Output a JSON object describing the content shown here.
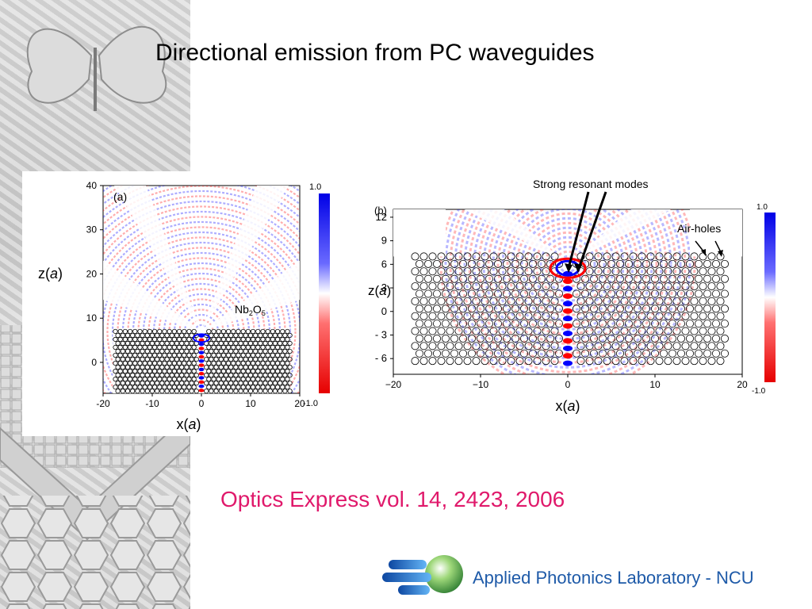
{
  "slide": {
    "title": "Directional emission from PC waveguides",
    "citation": "Optics Express vol. 14, 2423, 2006",
    "lab_name": "Applied Photonics Laboratory - NCU"
  },
  "colors": {
    "citation": "#e0196b",
    "lab_name": "#1e5aa8",
    "field_positive": "#0000ff",
    "field_negative": "#ff0000"
  },
  "figure_a": {
    "panel_label": "(a)",
    "material_label_base": "Nb",
    "material_sub1": "2",
    "material_mid": "O",
    "material_sub2": "5",
    "xlabel_prefix": "x(",
    "xlabel_var": "a",
    "xlabel_suffix": ")",
    "ylabel_prefix": "z(",
    "ylabel_var": "a",
    "ylabel_suffix": ")",
    "x_ticks": [
      "-20",
      "-10",
      "0",
      "10",
      "20"
    ],
    "z_ticks": [
      "40",
      "30",
      "20",
      "10",
      "0"
    ],
    "x_range": [
      -20,
      20
    ],
    "z_range": [
      -7,
      40
    ],
    "colorbar_top": "1.0",
    "colorbar_bottom": "-1.0"
  },
  "figure_b": {
    "panel_label": "(b)",
    "annotation_modes": "Strong resonant modes",
    "annotation_holes": "Air-holes",
    "xlabel_prefix": "x(",
    "xlabel_var": "a",
    "xlabel_suffix": ")",
    "ylabel_prefix": "z(",
    "ylabel_var": "a",
    "ylabel_suffix": ")",
    "x_ticks": [
      "−20",
      "−10",
      "0",
      "10",
      "20"
    ],
    "z_ticks": [
      "12",
      "9",
      "6",
      "3",
      "0",
      "- 3",
      "- 6"
    ],
    "x_range": [
      -20,
      20
    ],
    "z_range": [
      -8,
      13
    ],
    "colorbar_top": "1.0",
    "colorbar_bottom": "-1.0"
  }
}
